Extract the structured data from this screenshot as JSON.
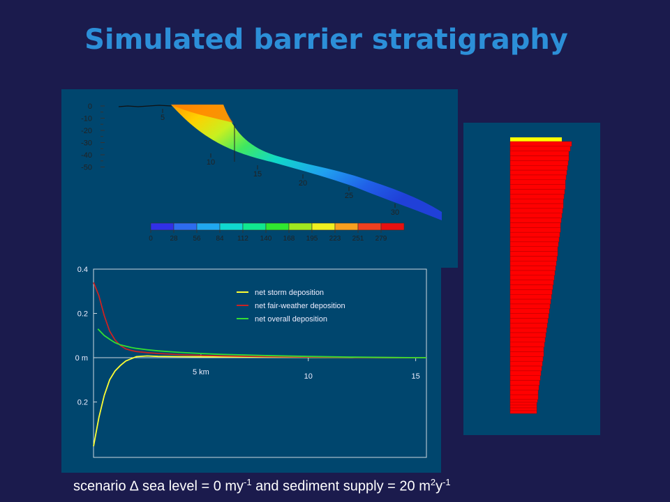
{
  "slide": {
    "title": "Simulated barrier stratigraphy",
    "caption": {
      "prefix": "scenario ",
      "delta": "∆",
      "part1": " sea level = 0 my",
      "sup1": "-1",
      "part2": " and sediment supply = 20 m",
      "sup2": "2",
      "part3": "y",
      "sup3": "-1"
    }
  },
  "colors": {
    "slide_background": "#1b1b4d",
    "title": "#2c8fd8",
    "panel_background": "#00466e",
    "storm": "#ffff33",
    "fair_weather": "#cc2222",
    "overall": "#33dd33",
    "core_top": "#ffff00",
    "core_body": "#ff0000"
  },
  "chart_data": [
    {
      "type": "area",
      "description_role": "cross-section",
      "y_tick_labels": [
        "0",
        "-10",
        "-20",
        "-30",
        "-40",
        "-50"
      ],
      "ylim": [
        -53,
        3
      ],
      "profile_labels": [
        "5",
        "10",
        "15",
        "20",
        "25",
        "30"
      ],
      "colorbar_ticks": [
        "0",
        "28",
        "56",
        "84",
        "112",
        "140",
        "168",
        "195",
        "223",
        "251",
        "279"
      ],
      "colorbar_colors": [
        "#3030e8",
        "#2d6cf0",
        "#20a8f0",
        "#10d8d0",
        "#10e890",
        "#30e830",
        "#a0e820",
        "#f0f020",
        "#f8a020",
        "#f04020",
        "#e81010"
      ]
    },
    {
      "type": "line",
      "xlim": [
        0,
        15.5
      ],
      "ylim": [
        -0.45,
        0.4
      ],
      "x_tick_labels": [
        "5 km",
        "10",
        "15"
      ],
      "y_tick_labels": [
        "0.4",
        "0.2",
        "0 m",
        "0.2"
      ],
      "legend_position": "top-right",
      "series": [
        {
          "name": "net storm deposition",
          "color": "#ffff33",
          "x": [
            0,
            0.25,
            0.5,
            0.75,
            1.0,
            1.25,
            1.5,
            1.75,
            2.0,
            2.5,
            3,
            4,
            6,
            8,
            10,
            12,
            15.5
          ],
          "y": [
            -0.4,
            -0.27,
            -0.17,
            -0.1,
            -0.06,
            -0.035,
            -0.015,
            -0.005,
            0.005,
            0.008,
            0.006,
            0.005,
            0.004,
            0.003,
            0.002,
            0.001,
            0.0
          ]
        },
        {
          "name": "net fair-weather deposition",
          "color": "#cc2222",
          "x": [
            0,
            0.25,
            0.5,
            0.75,
            1.0,
            1.25,
            1.5,
            1.75,
            2.0,
            2.5,
            3,
            4,
            5,
            6,
            8,
            10,
            12,
            15.5
          ],
          "y": [
            0.34,
            0.28,
            0.19,
            0.12,
            0.08,
            0.055,
            0.04,
            0.033,
            0.028,
            0.023,
            0.019,
            0.014,
            0.011,
            0.008,
            0.005,
            0.003,
            0.002,
            0.0
          ]
        },
        {
          "name": "net overall deposition",
          "color": "#33dd33",
          "x": [
            0.2,
            0.5,
            0.8,
            1.0,
            1.25,
            1.5,
            1.75,
            2.0,
            2.5,
            3,
            4,
            5,
            6,
            8,
            10,
            12,
            15.5
          ],
          "y": [
            0.13,
            0.1,
            0.08,
            0.068,
            0.058,
            0.052,
            0.046,
            0.042,
            0.036,
            0.031,
            0.024,
            0.019,
            0.015,
            0.01,
            0.006,
            0.003,
            0.0
          ]
        }
      ]
    },
    {
      "type": "bar",
      "description_role": "stratigraphic-core",
      "orientation": "horizontal",
      "top_layer_color": "#ffff00",
      "body_color": "#ff0000",
      "layer_widths": [
        74,
        88,
        86,
        84,
        84,
        83,
        82,
        81,
        80,
        79,
        79,
        78,
        77,
        76,
        76,
        75,
        74,
        73,
        72,
        72,
        71,
        70,
        69,
        68,
        68,
        67,
        66,
        65,
        64,
        63,
        62,
        61,
        60,
        59,
        58,
        57,
        56,
        55,
        54,
        53,
        52,
        51,
        50,
        49,
        48,
        48,
        47,
        46,
        45,
        44,
        43,
        42,
        41,
        40,
        40,
        39,
        38,
        38,
        38,
        38
      ]
    }
  ]
}
